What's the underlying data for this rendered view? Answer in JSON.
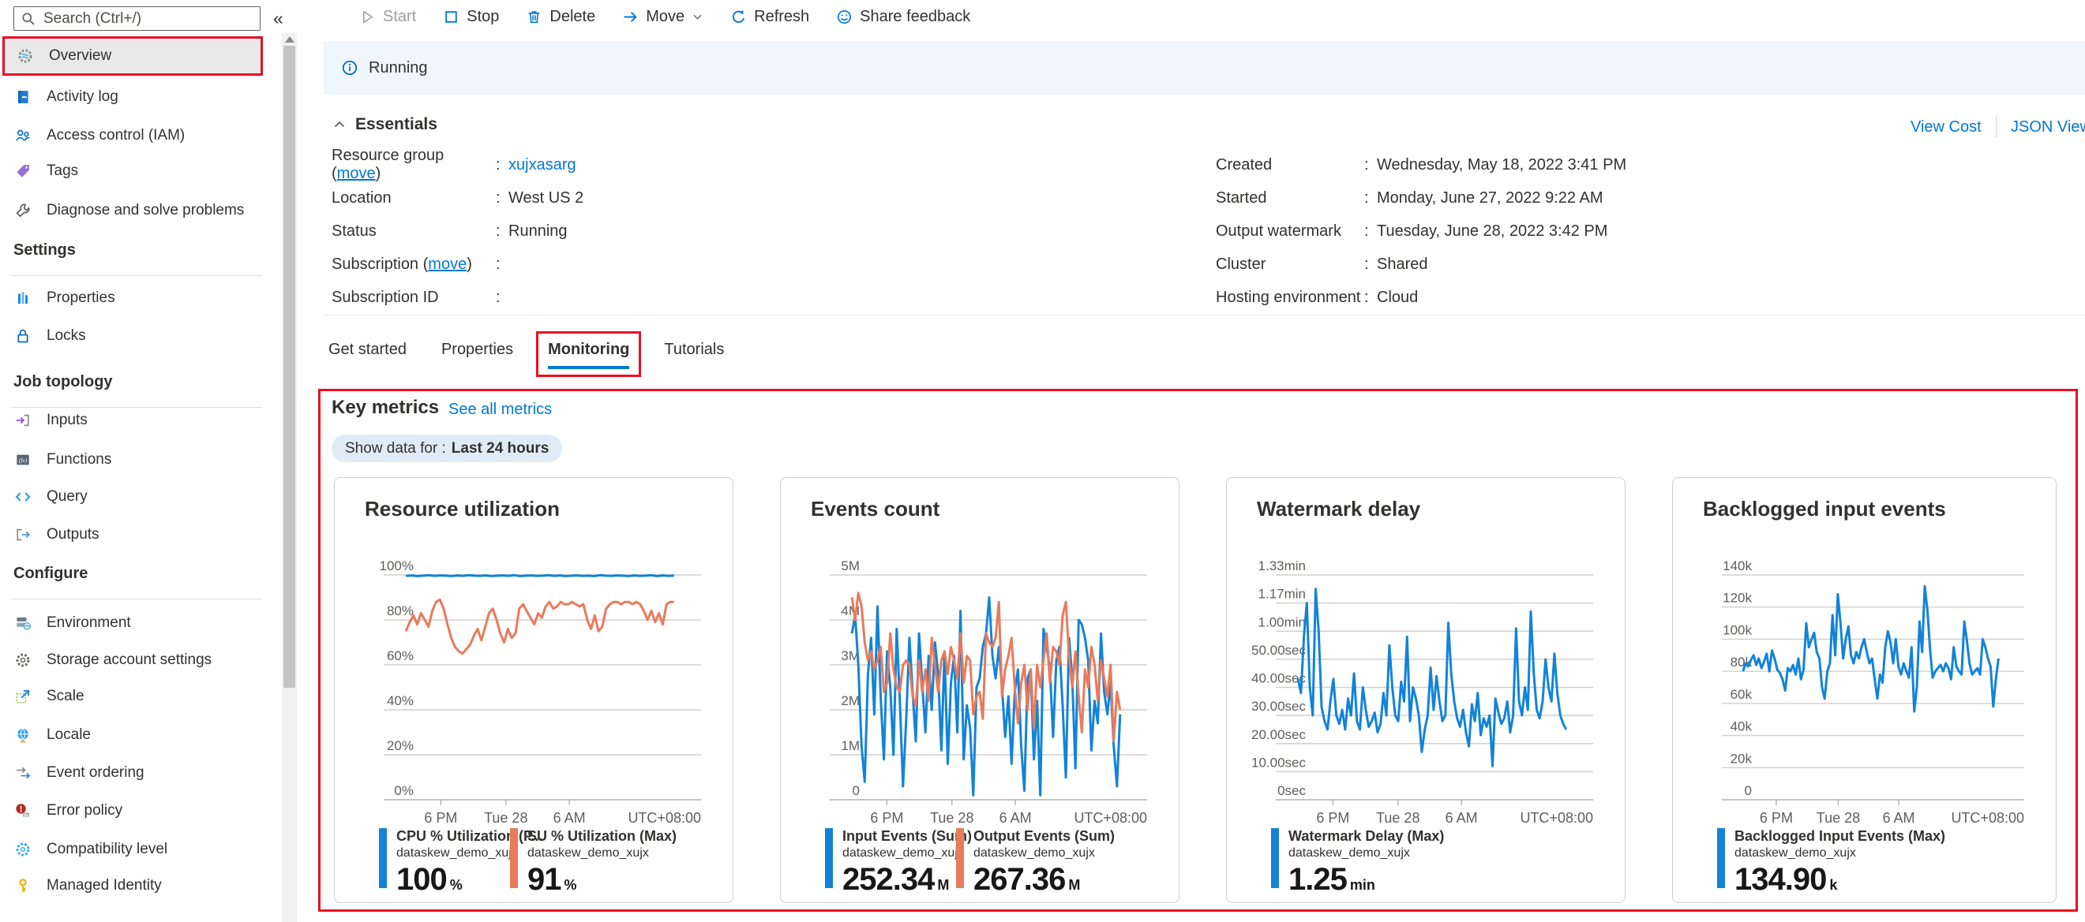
{
  "sidebar": {
    "search": {
      "placeholder": "Search (Ctrl+/)"
    },
    "collapse_label": "«",
    "sections": [
      {
        "items": [
          {
            "id": "overview",
            "label": "Overview",
            "icon": "stream-analytics-gear",
            "selected": true,
            "annotated": true
          },
          {
            "id": "activity-log",
            "label": "Activity log",
            "icon": "activity-log"
          },
          {
            "id": "access-control-iam",
            "label": "Access control (IAM)",
            "icon": "people"
          },
          {
            "id": "tags",
            "label": "Tags",
            "icon": "tag"
          },
          {
            "id": "diagnose-and-solve-problems",
            "label": "Diagnose and solve problems",
            "icon": "wrench"
          }
        ]
      },
      {
        "header": "Settings",
        "items": [
          {
            "id": "properties",
            "label": "Properties",
            "icon": "bars"
          },
          {
            "id": "locks",
            "label": "Locks",
            "icon": "lock"
          }
        ]
      },
      {
        "header": "Job topology",
        "items": [
          {
            "id": "inputs",
            "label": "Inputs",
            "icon": "input-arrow"
          },
          {
            "id": "functions",
            "label": "Functions",
            "icon": "function-box"
          },
          {
            "id": "query",
            "label": "Query",
            "icon": "code-brackets"
          },
          {
            "id": "outputs",
            "label": "Outputs",
            "icon": "output-arrow"
          }
        ]
      },
      {
        "header": "Configure",
        "items": [
          {
            "id": "environment",
            "label": "Environment",
            "icon": "environment-stack"
          },
          {
            "id": "storage-account-settings",
            "label": "Storage account settings",
            "icon": "gear-outline"
          },
          {
            "id": "scale",
            "label": "Scale",
            "icon": "scale-arrow"
          },
          {
            "id": "locale",
            "label": "Locale",
            "icon": "globe"
          },
          {
            "id": "event-ordering",
            "label": "Event ordering",
            "icon": "ordered-arrows"
          },
          {
            "id": "error-policy",
            "label": "Error policy",
            "icon": "error-badge"
          },
          {
            "id": "compatibility-level",
            "label": "Compatibility level",
            "icon": "gear-blue"
          },
          {
            "id": "managed-identity",
            "label": "Managed Identity",
            "icon": "key"
          }
        ]
      }
    ]
  },
  "toolbar": {
    "buttons": [
      {
        "id": "start",
        "label": "Start",
        "icon": "play",
        "disabled": true
      },
      {
        "id": "stop",
        "label": "Stop",
        "icon": "stop-square"
      },
      {
        "id": "delete",
        "label": "Delete",
        "icon": "trash"
      },
      {
        "id": "move",
        "label": "Move",
        "icon": "arrow-right",
        "menu": true
      },
      {
        "id": "refresh",
        "label": "Refresh",
        "icon": "refresh"
      },
      {
        "id": "share-feedback",
        "label": "Share feedback",
        "icon": "smiley"
      }
    ]
  },
  "banner": {
    "status": "Running"
  },
  "essentials": {
    "title": "Essentials",
    "links": {
      "view_cost": "View Cost",
      "json_view": "JSON View"
    },
    "left": [
      {
        "label": "Resource group",
        "move": "move",
        "value": "xujxasarg",
        "link": true
      },
      {
        "label": "Location",
        "value": "West US 2"
      },
      {
        "label": "Status",
        "value": "Running"
      },
      {
        "label": "Subscription",
        "move": "move",
        "value": ""
      },
      {
        "label": "Subscription ID",
        "value": ""
      }
    ],
    "right": [
      {
        "label": "Created",
        "value": "Wednesday, May 18, 2022 3:41 PM"
      },
      {
        "label": "Started",
        "value": "Monday, June 27, 2022 9:22 AM"
      },
      {
        "label": "Output watermark",
        "value": "Tuesday, June 28, 2022 3:42 PM"
      },
      {
        "label": "Cluster",
        "value": "Shared"
      },
      {
        "label": "Hosting environment",
        "value": "Cloud"
      }
    ]
  },
  "tabs": {
    "items": [
      "Get started",
      "Properties",
      "Monitoring",
      "Tutorials"
    ],
    "active": "Monitoring"
  },
  "key_metrics": {
    "title": "Key metrics",
    "see_all": "See all metrics",
    "filter_label": "Show data for :",
    "filter_value": "Last 24 hours"
  },
  "colors": {
    "accent": "#0078d4",
    "blue": "#1283d8",
    "salmon": "#e97a5c",
    "annotation_red": "#e81123"
  },
  "chart_data": {
    "type": "line",
    "time_window": "Last 24 hours",
    "charts": [
      {
        "title": "Resource utilization",
        "ylim": [
          0,
          100
        ],
        "yticks": [
          "100%",
          "80%",
          "60%",
          "40%",
          "20%",
          "0%"
        ],
        "xticks": [
          "6 PM",
          "Tue 28",
          "6 AM"
        ],
        "timezone": "UTC+08:00",
        "series": [
          {
            "name": "CPU % Utilization (P...",
            "resource": "dataskew_demo_xujx",
            "color": "blue",
            "legend_value": "100",
            "legend_unit": "%",
            "values": [
              99.6,
              99.8,
              99.5,
              99.7,
              99.9,
              99.6,
              99.8,
              99.7,
              99.5,
              99.8,
              99.6,
              99.9,
              99.7,
              99.6,
              99.8,
              99.5,
              99.7,
              99.8,
              99.6,
              99.9,
              99.5,
              99.7,
              99.8,
              99.6,
              99.7,
              99.9,
              99.6,
              99.8,
              99.5,
              99.7,
              99.8,
              99.6,
              99.7,
              99.5,
              99.9,
              99.7,
              99.6,
              99.8,
              99.7,
              99.5,
              99.8,
              99.6,
              99.7,
              99.9,
              99.5,
              99.8,
              99.6,
              99.7
            ]
          },
          {
            "name": "SU % Utilization (Max)",
            "resource": "dataskew_demo_xujx",
            "color": "salmon",
            "legend_value": "91",
            "legend_unit": "%",
            "values": [
              75,
              79,
              82,
              78,
              83,
              80,
              77,
              84,
              88,
              89,
              85,
              78,
              72,
              68,
              66,
              65,
              67,
              69,
              73,
              76,
              71,
              77,
              83,
              85,
              80,
              74,
              70,
              76,
              72,
              74,
              85,
              87,
              84,
              81,
              78,
              83,
              81,
              86,
              88,
              85,
              86,
              88,
              87,
              87,
              88,
              87,
              86,
              87,
              80,
              76,
              82,
              75,
              77,
              85,
              87,
              88,
              88,
              87,
              88,
              88,
              87,
              88,
              87,
              84,
              80,
              84,
              79,
              83,
              78,
              87,
              88,
              88
            ]
          }
        ]
      },
      {
        "title": "Events count",
        "ylim": [
          0,
          5
        ],
        "yticks": [
          "5M",
          "4M",
          "3M",
          "2M",
          "1M",
          "0"
        ],
        "xticks": [
          "6 PM",
          "Tue 28",
          "6 AM"
        ],
        "timezone": "UTC+08:00",
        "series": [
          {
            "name": "Input Events (Sum)",
            "resource": "dataskew_demo_xujx",
            "color": "blue",
            "legend_value": "252.34",
            "legend_unit": "M",
            "values": [
              3.7,
              4.1,
              3.0,
              1.2,
              0.4,
              2.8,
              3.6,
              1.9,
              4.3,
              2.3,
              0.9,
              3.3,
              2.5,
              1.0,
              3.8,
              2.2,
              0.3,
              1.8,
              3.6,
              2.4,
              1.3,
              3.7,
              2.6,
              1.5,
              3.2,
              2.0,
              3.5,
              2.8,
              1.1,
              3.3,
              0.8,
              2.6,
              3.2,
              1.5,
              4.2,
              0.9,
              2.1,
              1.6,
              0.1,
              2.5,
              2.7,
              3.4,
              3.7,
              4.5,
              3.2,
              2.7,
              3.4,
              2.5,
              1.4,
              2.3,
              0.8,
              2.4,
              2.9,
              1.2,
              0.2,
              2.7,
              2.9,
              0.9,
              2.2,
              0.1,
              3.8,
              3.4,
              2.9,
              1.4,
              3.1,
              3.4,
              2.1,
              0.5,
              3.6,
              2.7,
              0.7,
              4.0,
              3.9,
              3.6,
              3.1,
              1.1,
              2.2,
              1.7,
              3.7,
              2.4,
              1.9,
              2.6,
              1.2,
              0.3,
              1.9
            ]
          },
          {
            "name": "Output Events (Sum)",
            "resource": "dataskew_demo_xujx",
            "color": "salmon",
            "legend_value": "267.36",
            "legend_unit": "M",
            "values": [
              4.5,
              4.0,
              4.6,
              4.3,
              3.5,
              3.1,
              3.3,
              2.9,
              3.1,
              3.4,
              2.4,
              2.6,
              3.7,
              2.9,
              2.5,
              2.4,
              3.0,
              3.1,
              3.0,
              2.3,
              2.1,
              3.1,
              2.4,
              2.9,
              2.2,
              3.6,
              3.0,
              2.4,
              3.1,
              3.3,
              2.8,
              3.4,
              3.1,
              2.7,
              3.7,
              2.6,
              3.2,
              3.1,
              1.9,
              2.3,
              2.4,
              1.8,
              3.7,
              3.5,
              3.4,
              3.6,
              4.4,
              2.3,
              2.9,
              3.2,
              3.6,
              2.5,
              1.7,
              2.6,
              3.0,
              2.0,
              2.9,
              1.6,
              3.0,
              2.5,
              3.1,
              3.7,
              2.6,
              3.4,
              3.3,
              3.0,
              4.1,
              4.4,
              3.2,
              2.5,
              3.3,
              2.3,
              1.5,
              2.9,
              2.5,
              3.4,
              3.0,
              2.2,
              3.1,
              2.7,
              2.3,
              3.0,
              1.3,
              2.4,
              2.0
            ]
          }
        ]
      },
      {
        "title": "Watermark delay",
        "ylim": [
          0,
          80
        ],
        "yticks": [
          "1.33min",
          "1.17min",
          "1.00min",
          "50.00sec",
          "40.00sec",
          "30.00sec",
          "20.00sec",
          "10.00sec",
          "0sec"
        ],
        "xticks": [
          "6 PM",
          "Tue 28",
          "6 AM"
        ],
        "timezone": "UTC+08:00",
        "series": [
          {
            "name": "Watermark Delay (Max)",
            "resource": "dataskew_demo_xujx",
            "color": "blue",
            "legend_value": "1.25",
            "legend_unit": "min",
            "values": [
              43,
              38,
              58,
              70,
              40,
              30,
              75,
              60,
              33,
              28,
              25,
              35,
              43,
              30,
              27,
              32,
              25,
              36,
              30,
              45,
              28,
              25,
              40,
              32,
              26,
              28,
              31,
              24,
              27,
              38,
              30,
              55,
              40,
              30,
              28,
              42,
              35,
              58,
              28,
              40,
              36,
              30,
              17,
              25,
              30,
              47,
              32,
              44,
              35,
              28,
              30,
              63,
              45,
              35,
              29,
              26,
              32,
              24,
              19,
              34,
              28,
              38,
              23,
              29,
              26,
              30,
              12,
              36,
              31,
              27,
              29,
              35,
              24,
              30,
              61,
              35,
              30,
              40,
              32,
              67,
              45,
              32,
              29,
              35,
              50,
              40,
              35,
              52,
              38,
              30,
              27,
              25
            ]
          }
        ]
      },
      {
        "title": "Backlogged input events",
        "ylim": [
          0,
          140
        ],
        "yticks": [
          "140k",
          "120k",
          "100k",
          "80k",
          "60k",
          "40k",
          "20k",
          "0"
        ],
        "xticks": [
          "6 PM",
          "Tue 28",
          "6 AM"
        ],
        "timezone": "UTC+08:00",
        "series": [
          {
            "name": "Backlogged Input Events (Max)",
            "resource": "dataskew_demo_xujx",
            "color": "blue",
            "legend_value": "134.90",
            "legend_unit": "k",
            "values": [
              80,
              85,
              83,
              87,
              90,
              84,
              88,
              82,
              86,
              91,
              80,
              93,
              88,
              81,
              79,
              75,
              68,
              82,
              80,
              84,
              78,
              88,
              75,
              81,
              110,
              95,
              100,
              104,
              92,
              88,
              70,
              63,
              80,
              85,
              115,
              90,
              128,
              110,
              88,
              100,
              108,
              90,
              85,
              92,
              88,
              95,
              100,
              92,
              85,
              88,
              75,
              63,
              78,
              73,
              95,
              105,
              98,
              85,
              100,
              83,
              78,
              85,
              80,
              76,
              95,
              55,
              70,
              111,
              92,
              133,
              118,
              94,
              76,
              80,
              82,
              84,
              80,
              85,
              82,
              75,
              95,
              83,
              80,
              78,
              111,
              99,
              85,
              78,
              80,
              82,
              78,
              100,
              95,
              88,
              83,
              58,
              75,
              88
            ]
          }
        ]
      }
    ]
  }
}
